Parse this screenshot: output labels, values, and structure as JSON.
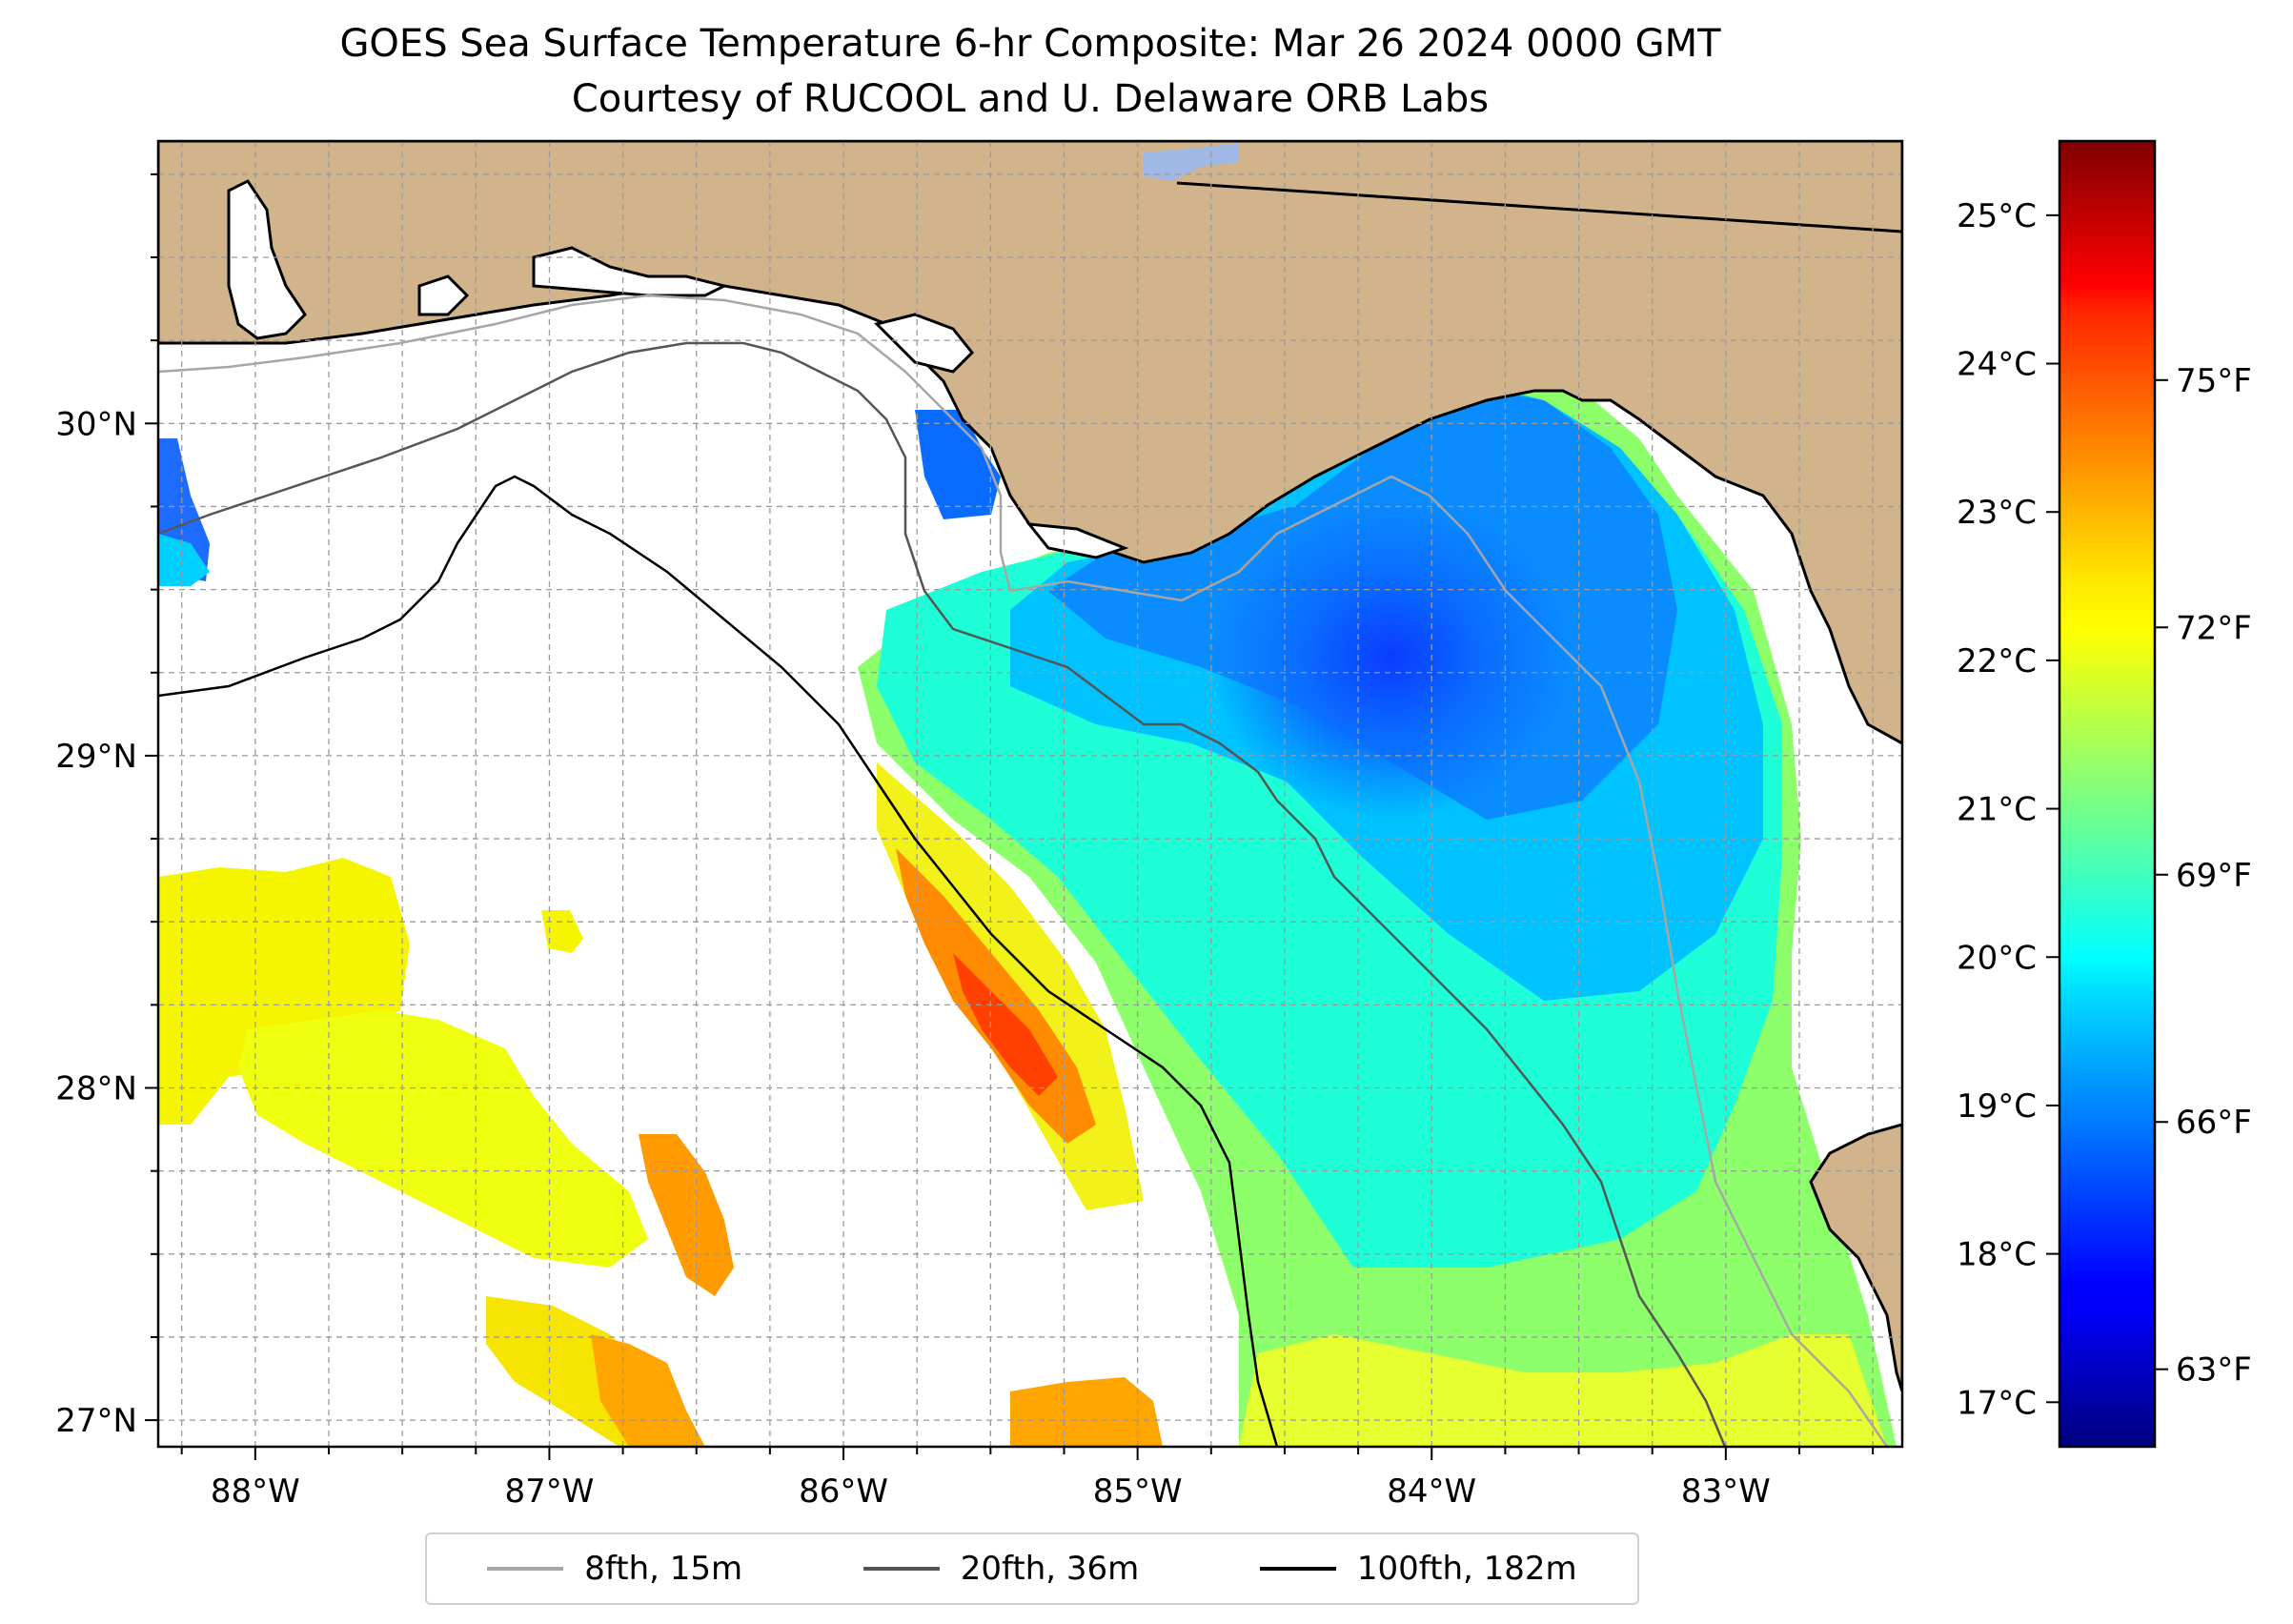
{
  "title": {
    "line1": "GOES Sea Surface Temperature 6-hr Composite: Mar 26 2024 0000 GMT",
    "line2": "Courtesy of RUCOOL and U. Delaware ORB Labs"
  },
  "map": {
    "lon_range": [
      -88.33,
      -82.4
    ],
    "lat_range": [
      26.92,
      30.85
    ],
    "lon_ticks": [
      {
        "value": -88,
        "label": "88°W"
      },
      {
        "value": -87,
        "label": "87°W"
      },
      {
        "value": -86,
        "label": "86°W"
      },
      {
        "value": -85,
        "label": "85°W"
      },
      {
        "value": -84,
        "label": "84°W"
      },
      {
        "value": -83,
        "label": "83°W"
      }
    ],
    "lat_ticks": [
      {
        "value": 30,
        "label": "30°N"
      },
      {
        "value": 29,
        "label": "29°N"
      },
      {
        "value": 28,
        "label": "28°N"
      },
      {
        "value": 27,
        "label": "27°N"
      }
    ],
    "gridlines": "dashed gray, every 0.25°",
    "colors": {
      "land": "#d2b48c",
      "water": "#ffffff",
      "lake": "#9fb8e6",
      "contour_8fth": "#a6a6a6",
      "contour_20fth": "#555555",
      "contour_100fth": "#000000"
    }
  },
  "colorbar": {
    "colormap": "jet",
    "range_c": [
      16.7,
      25.5
    ],
    "celsius_ticks": [
      {
        "value": 17,
        "label": "17°C"
      },
      {
        "value": 18,
        "label": "18°C"
      },
      {
        "value": 19,
        "label": "19°C"
      },
      {
        "value": 20,
        "label": "20°C"
      },
      {
        "value": 21,
        "label": "21°C"
      },
      {
        "value": 22,
        "label": "22°C"
      },
      {
        "value": 23,
        "label": "23°C"
      },
      {
        "value": 24,
        "label": "24°C"
      },
      {
        "value": 25,
        "label": "25°C"
      }
    ],
    "fahrenheit_ticks": [
      {
        "value": 63,
        "label": "63°F"
      },
      {
        "value": 66,
        "label": "66°F"
      },
      {
        "value": 69,
        "label": "69°F"
      },
      {
        "value": 72,
        "label": "72°F"
      },
      {
        "value": 75,
        "label": "75°F"
      }
    ]
  },
  "legend": {
    "placement": "bottom-center",
    "entries": [
      {
        "label": "8fth, 15m",
        "color": "#a6a6a6"
      },
      {
        "label": "20fth, 36m",
        "color": "#555555"
      },
      {
        "label": "100fth, 182m",
        "color": "#000000"
      }
    ]
  }
}
